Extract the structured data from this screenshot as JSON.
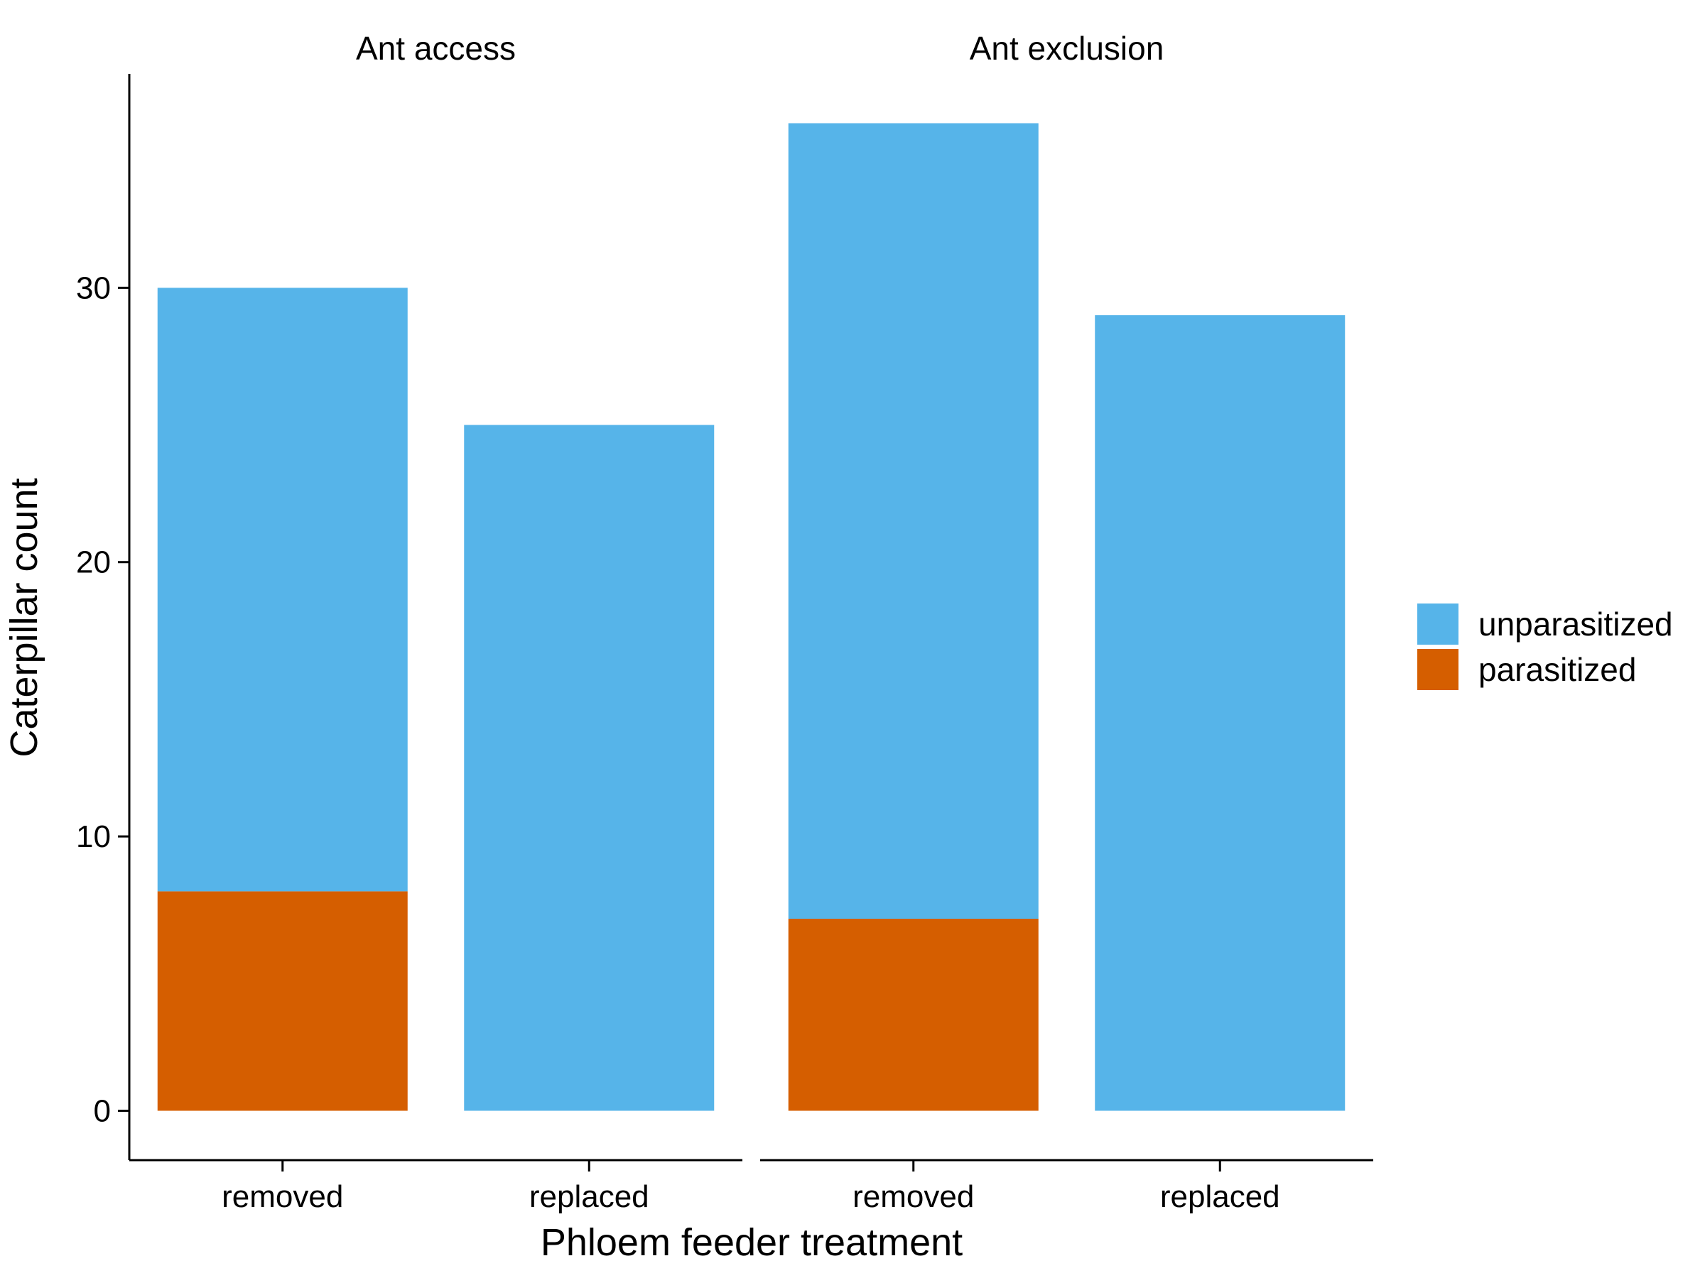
{
  "chart_data": {
    "type": "bar",
    "stacked": true,
    "xlabel": "Phloem feeder treatment",
    "ylabel": "Caterpillar count",
    "ylim": [
      -1.8,
      37.8
    ],
    "yticks": [
      0,
      10,
      20,
      30
    ],
    "categories": [
      "removed",
      "replaced"
    ],
    "facets": [
      {
        "title": "Ant access",
        "series": [
          {
            "name": "parasitized",
            "values": [
              8,
              0
            ]
          },
          {
            "name": "unparasitized",
            "values": [
              22,
              25
            ]
          }
        ]
      },
      {
        "title": "Ant exclusion",
        "series": [
          {
            "name": "parasitized",
            "values": [
              7,
              0
            ]
          },
          {
            "name": "unparasitized",
            "values": [
              29,
              29
            ]
          }
        ]
      }
    ],
    "legend": {
      "placement": "right",
      "items": [
        {
          "name": "unparasitized",
          "color": "#56B4E9"
        },
        {
          "name": "parasitized",
          "color": "#D55E00"
        }
      ]
    },
    "grid": false
  }
}
